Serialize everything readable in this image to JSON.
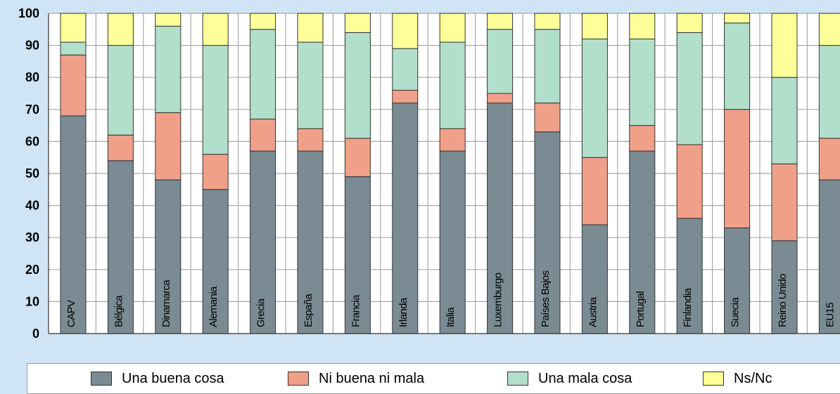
{
  "chart_data": {
    "type": "bar",
    "stacked": true,
    "orientation": "vertical",
    "categories": [
      "CAPV",
      "Bélgica",
      "Dinamarca",
      "Alemania",
      "Grecia",
      "España",
      "Francia",
      "Irlanda",
      "Italia",
      "Luxemburgo",
      "Países Bajos",
      "Austria",
      "Portugal",
      "Finlandia",
      "Suecia",
      "Reino Unido",
      "EU15"
    ],
    "series": [
      {
        "name": "Una buena cosa",
        "color": "#7b8b94",
        "values": [
          68,
          54,
          48,
          45,
          57,
          57,
          49,
          72,
          57,
          72,
          63,
          34,
          57,
          36,
          33,
          29,
          48
        ]
      },
      {
        "name": "Ni buena ni mala",
        "color": "#f0a088",
        "values": [
          19,
          8,
          21,
          11,
          10,
          7,
          12,
          4,
          7,
          3,
          9,
          21,
          8,
          23,
          37,
          24,
          13
        ]
      },
      {
        "name": "Una mala cosa",
        "color": "#b2dfcb",
        "values": [
          4,
          28,
          27,
          34,
          28,
          27,
          33,
          13,
          27,
          20,
          23,
          37,
          27,
          35,
          27,
          27,
          29
        ]
      },
      {
        "name": "Ns/Nc",
        "color": "#ffff99",
        "values": [
          9,
          10,
          4,
          10,
          5,
          9,
          6,
          11,
          9,
          5,
          5,
          8,
          8,
          6,
          3,
          20,
          10
        ]
      }
    ],
    "ylim": [
      0,
      100
    ],
    "yticks": [
      "0",
      "10",
      "20",
      "30",
      "40",
      "50",
      "60",
      "70",
      "80",
      "90",
      "100"
    ],
    "title": "",
    "xlabel": "",
    "ylabel": "",
    "grid": true,
    "legend_position": "bottom",
    "colors": {
      "background": "#cfe5f5",
      "plot_background": "#ffffff",
      "grid": "#a8a8a8",
      "bar_outline": "#333333"
    }
  }
}
